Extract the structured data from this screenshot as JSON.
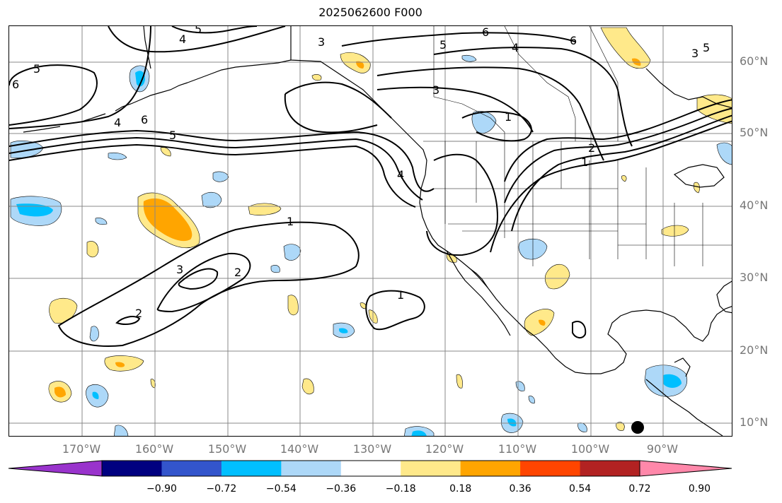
{
  "title": "2025062600 F000",
  "lat_labels": [
    "60°N",
    "50°N",
    "40°N",
    "30°N",
    "20°N",
    "10°N"
  ],
  "lon_labels": [
    "170°W",
    "160°W",
    "150°W",
    "140°W",
    "130°W",
    "120°W",
    "110°W",
    "100°W",
    "90°W"
  ],
  "colorbar": {
    "colors": [
      "#9933cc",
      "#000080",
      "#3355cc",
      "#00bfff",
      "#add8f8",
      "#ffffff",
      "#ffe98a",
      "#ffa500",
      "#ff4500",
      "#b22222",
      "#ff88aa"
    ],
    "ticks": [
      "−0.90",
      "−0.72",
      "−0.54",
      "−0.36",
      "−0.18",
      "0.18",
      "0.36",
      "0.54",
      "0.72",
      "0.90"
    ]
  },
  "contour_labels": [
    "4",
    "5",
    "5",
    "6",
    "3",
    "5",
    "6",
    "4",
    "6",
    "3",
    "5",
    "4",
    "6",
    "5",
    "3",
    "1",
    "2",
    "1",
    "4",
    "1",
    "2",
    "3",
    "2",
    "1"
  ]
}
